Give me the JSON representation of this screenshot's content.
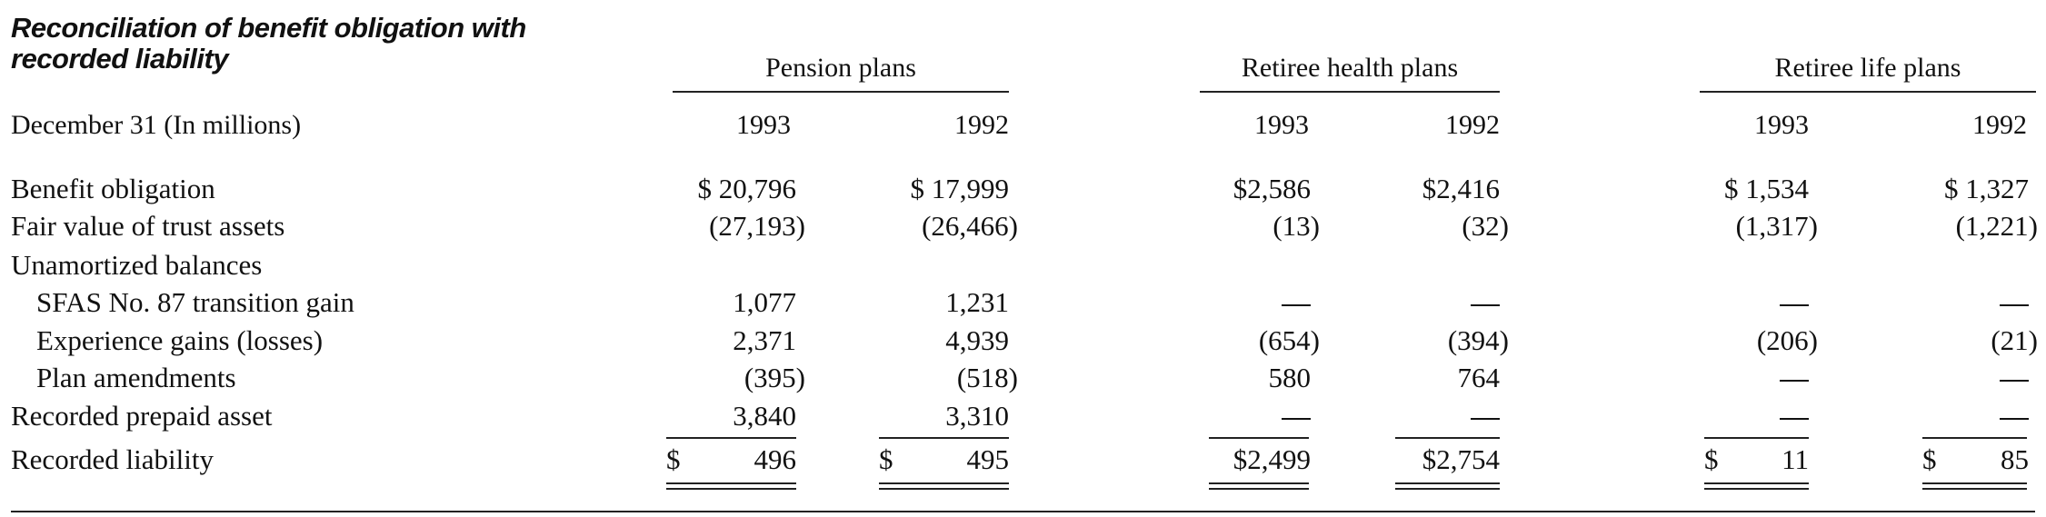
{
  "title": "Reconciliation of benefit obligation with recorded liability",
  "header": {
    "date_label": "December 31 (In millions)",
    "groups": [
      "Pension plans",
      "Retiree health plans",
      "Retiree life plans"
    ],
    "years": [
      "1993",
      "1992",
      "1993",
      "1992",
      "1993",
      "1992"
    ]
  },
  "rows": [
    {
      "label": "Benefit obligation",
      "cells": [
        "$ 20,796",
        "$ 17,999",
        "$2,586",
        "$2,416",
        "$ 1,534",
        "$ 1,327"
      ]
    },
    {
      "label": "Fair value of trust assets",
      "cells": [
        "(27,193)",
        "(26,466)",
        "(13)",
        "(32)",
        "(1,317)",
        "(1,221)"
      ]
    },
    {
      "label": "Unamortized balances",
      "cells": [
        "",
        "",
        "",
        "",
        "",
        ""
      ]
    },
    {
      "label": "SFAS No. 87 transition gain",
      "cells": [
        "1,077",
        "1,231",
        "—",
        "—",
        "—",
        "—"
      ]
    },
    {
      "label": "Experience gains (losses)",
      "cells": [
        "2,371",
        "4,939",
        "(654)",
        "(394)",
        "(206)",
        "(21)"
      ]
    },
    {
      "label": "Plan amendments",
      "cells": [
        "(395)",
        "(518)",
        "580",
        "764",
        "—",
        "—"
      ]
    },
    {
      "label": "Recorded prepaid asset",
      "cells": [
        "3,840",
        "3,310",
        "—",
        "—",
        "—",
        "—"
      ]
    },
    {
      "label": "Recorded liability",
      "cells": [
        "496",
        "495",
        "$2,499",
        "$2,754",
        "11",
        "85"
      ]
    }
  ],
  "recorded_liability_currency": "$"
}
